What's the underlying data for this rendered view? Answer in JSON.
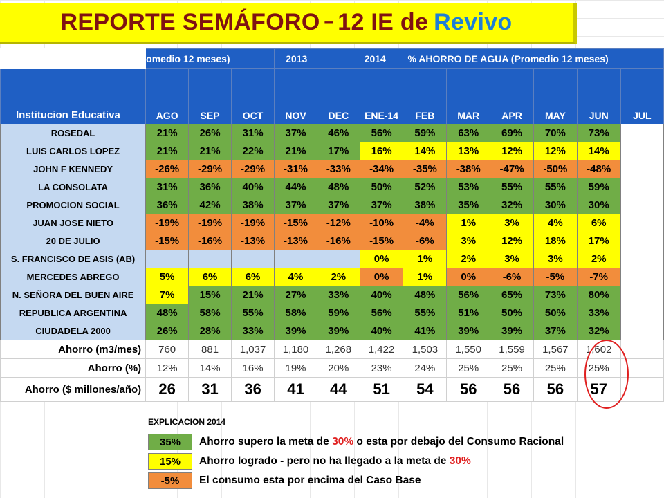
{
  "title": {
    "part1": "REPORTE SEMÁFORO",
    "dash": "–",
    "part2": "12 IE de",
    "part3": "Revivo"
  },
  "header": {
    "h2013_label": "omedio 12 meses)",
    "h2013_year": "2013",
    "h2014_year": "2014",
    "h2014_label": "% AHORRO DE AGUA (Promedio 12 meses)",
    "institution_label": "Institucion Educativa",
    "months": [
      "AGO",
      "SEP",
      "OCT",
      "NOV",
      "DEC",
      "ENE-14",
      "FEB",
      "MAR",
      "APR",
      "MAY",
      "JUN",
      "JUL"
    ]
  },
  "rows": [
    {
      "name": "ROSEDAL",
      "values": [
        "21%",
        "26%",
        "31%",
        "37%",
        "46%",
        "56%",
        "59%",
        "63%",
        "69%",
        "70%",
        "73%",
        ""
      ],
      "colors": [
        "G",
        "G",
        "G",
        "G",
        "G",
        "G",
        "G",
        "G",
        "G",
        "G",
        "G",
        "W"
      ]
    },
    {
      "name": "LUIS CARLOS LOPEZ",
      "values": [
        "21%",
        "21%",
        "22%",
        "21%",
        "17%",
        "16%",
        "14%",
        "13%",
        "12%",
        "12%",
        "14%",
        ""
      ],
      "colors": [
        "G",
        "G",
        "G",
        "G",
        "G",
        "Y",
        "Y",
        "Y",
        "Y",
        "Y",
        "Y",
        "W"
      ]
    },
    {
      "name": "JOHN F KENNEDY",
      "values": [
        "-26%",
        "-29%",
        "-29%",
        "-31%",
        "-33%",
        "-34%",
        "-35%",
        "-38%",
        "-47%",
        "-50%",
        "-48%",
        ""
      ],
      "colors": [
        "O",
        "O",
        "O",
        "O",
        "O",
        "O",
        "O",
        "O",
        "O",
        "O",
        "O",
        "W"
      ]
    },
    {
      "name": "LA CONSOLATA",
      "values": [
        "31%",
        "36%",
        "40%",
        "44%",
        "48%",
        "50%",
        "52%",
        "53%",
        "55%",
        "55%",
        "59%",
        ""
      ],
      "colors": [
        "G",
        "G",
        "G",
        "G",
        "G",
        "G",
        "G",
        "G",
        "G",
        "G",
        "G",
        "W"
      ]
    },
    {
      "name": "PROMOCION SOCIAL",
      "values": [
        "36%",
        "42%",
        "38%",
        "37%",
        "37%",
        "37%",
        "38%",
        "35%",
        "32%",
        "30%",
        "30%",
        ""
      ],
      "colors": [
        "G",
        "G",
        "G",
        "G",
        "G",
        "G",
        "G",
        "G",
        "G",
        "G",
        "G",
        "W"
      ]
    },
    {
      "name": "JUAN JOSE NIETO",
      "values": [
        "-19%",
        "-19%",
        "-19%",
        "-15%",
        "-12%",
        "-10%",
        "-4%",
        "1%",
        "3%",
        "4%",
        "6%",
        ""
      ],
      "colors": [
        "O",
        "O",
        "O",
        "O",
        "O",
        "O",
        "O",
        "Y",
        "Y",
        "Y",
        "Y",
        "W"
      ]
    },
    {
      "name": "20 DE JULIO",
      "values": [
        "-15%",
        "-16%",
        "-13%",
        "-13%",
        "-16%",
        "-15%",
        "-6%",
        "3%",
        "12%",
        "18%",
        "17%",
        ""
      ],
      "colors": [
        "O",
        "O",
        "O",
        "O",
        "O",
        "O",
        "O",
        "Y",
        "Y",
        "Y",
        "Y",
        "W"
      ]
    },
    {
      "name": "S. FRANCISCO DE ASIS (AB)",
      "values": [
        "",
        "",
        "",
        "",
        "",
        "0%",
        "1%",
        "2%",
        "3%",
        "3%",
        "2%",
        ""
      ],
      "colors": [
        "B",
        "B",
        "B",
        "B",
        "B",
        "Y",
        "Y",
        "Y",
        "Y",
        "Y",
        "Y",
        "W"
      ]
    },
    {
      "name": "MERCEDES ABREGO",
      "values": [
        "5%",
        "6%",
        "6%",
        "4%",
        "2%",
        "0%",
        "1%",
        "0%",
        "-6%",
        "-5%",
        "-7%",
        ""
      ],
      "colors": [
        "Y",
        "Y",
        "Y",
        "Y",
        "Y",
        "O",
        "Y",
        "O",
        "O",
        "O",
        "O",
        "W"
      ]
    },
    {
      "name": "N. SEÑORA DEL BUEN AIRE",
      "values": [
        "7%",
        "15%",
        "21%",
        "27%",
        "33%",
        "40%",
        "48%",
        "56%",
        "65%",
        "73%",
        "80%",
        ""
      ],
      "colors": [
        "Y",
        "G",
        "G",
        "G",
        "G",
        "G",
        "G",
        "G",
        "G",
        "G",
        "G",
        "W"
      ]
    },
    {
      "name": "REPUBLICA ARGENTINA",
      "values": [
        "48%",
        "58%",
        "55%",
        "58%",
        "59%",
        "56%",
        "55%",
        "51%",
        "50%",
        "50%",
        "33%",
        ""
      ],
      "colors": [
        "G",
        "G",
        "G",
        "G",
        "G",
        "G",
        "G",
        "G",
        "G",
        "G",
        "G",
        "W"
      ]
    },
    {
      "name": "CIUDADELA 2000",
      "values": [
        "26%",
        "28%",
        "33%",
        "39%",
        "39%",
        "40%",
        "41%",
        "39%",
        "39%",
        "37%",
        "32%",
        ""
      ],
      "colors": [
        "G",
        "G",
        "G",
        "G",
        "G",
        "G",
        "G",
        "G",
        "G",
        "G",
        "G",
        "W"
      ]
    }
  ],
  "summary": [
    {
      "label": "Ahorro (m3/mes)",
      "values": [
        "760",
        "881",
        "1,037",
        "1,180",
        "1,268",
        "1,422",
        "1,503",
        "1,550",
        "1,559",
        "1,567",
        "1,602",
        ""
      ]
    },
    {
      "label": "Ahorro (%)",
      "values": [
        "12%",
        "14%",
        "16%",
        "19%",
        "20%",
        "23%",
        "24%",
        "25%",
        "25%",
        "25%",
        "25%",
        ""
      ]
    },
    {
      "label": "Ahorro ($ millones/año)",
      "values": [
        "26",
        "31",
        "36",
        "41",
        "44",
        "51",
        "54",
        "56",
        "56",
        "56",
        "57",
        ""
      ]
    }
  ],
  "explanation": {
    "title": "EXPLICACION 2014",
    "items": [
      {
        "swatch": "35%",
        "color": "G",
        "text_a": "Ahorro supero la meta de ",
        "text_red": "30%",
        "text_b": " o esta por debajo del Consumo Racional"
      },
      {
        "swatch": "15%",
        "color": "Y",
        "text_a": "Ahorro logrado - pero no ha llegado a la meta de ",
        "text_red": "30%",
        "text_b": ""
      },
      {
        "swatch": "-5%",
        "color": "O",
        "text_a": "El consumo esta por encima del Caso Base",
        "text_red": "",
        "text_b": ""
      }
    ]
  },
  "colors": {
    "green": "#70ad47",
    "yellow": "#ffff00",
    "orange": "#f28d3c",
    "header_blue": "#1f5fc4",
    "name_blue": "#c5d9f1",
    "title_red": "#7f1212",
    "revivo_blue": "#1f7fd6",
    "circle_red": "#e02020"
  }
}
